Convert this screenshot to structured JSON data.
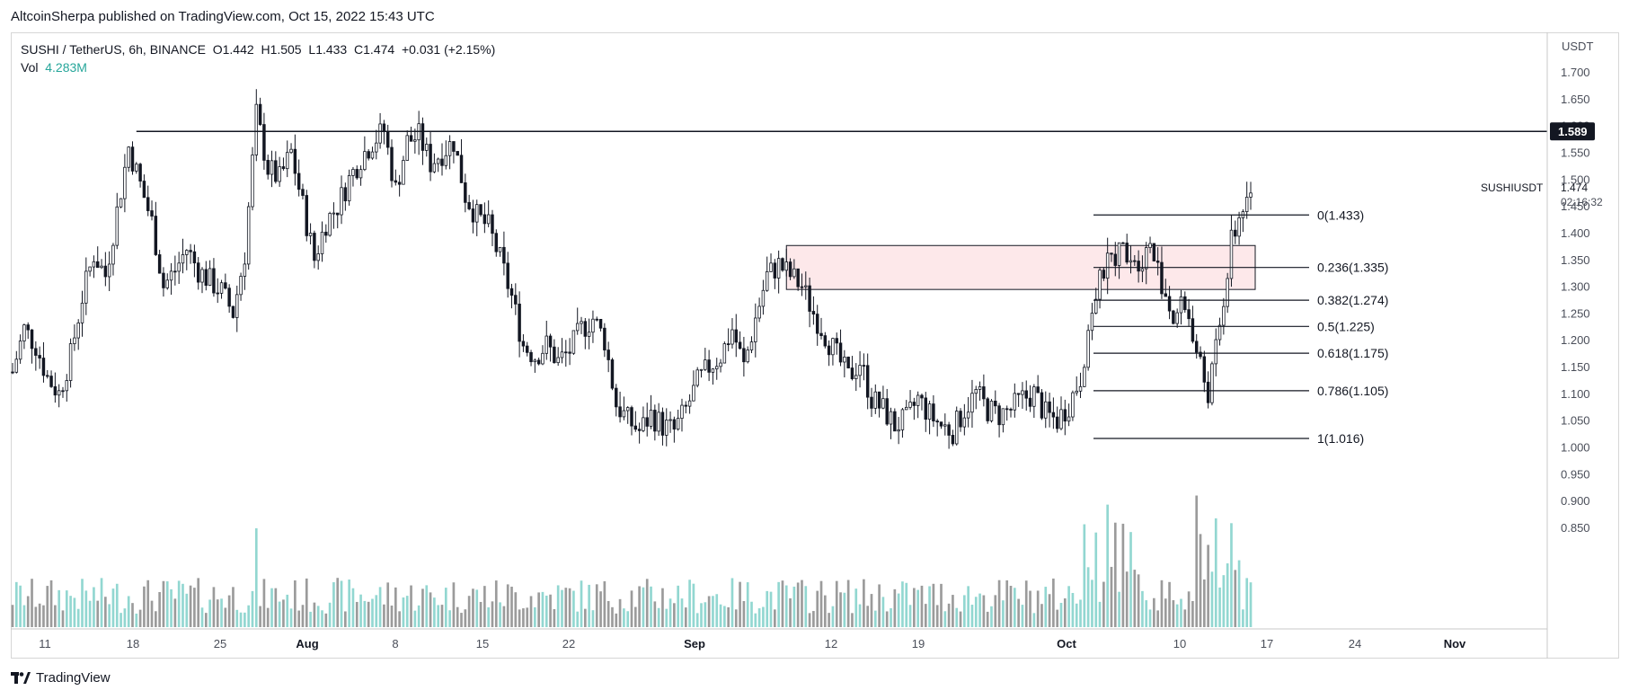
{
  "header": {
    "published": "AltcoinSherpa published on TradingView.com, Oct 15, 2022 15:43 UTC"
  },
  "legend": {
    "symbol": "SUSHI / TetherUS, 6h, BINANCE",
    "open_label": "O",
    "open": "1.442",
    "high_label": "H",
    "high": "1.505",
    "low_label": "L",
    "low": "1.433",
    "close_label": "C",
    "close": "1.474",
    "change": "+0.031 (+2.15%)",
    "vol_label": "Vol",
    "vol_value": "4.283M"
  },
  "footer": {
    "brand": "TradingView"
  },
  "colors": {
    "candle": "#131722",
    "volume_up": "#7fd0c9",
    "volume_down": "#8a8a8a",
    "zone_fill": "#fde8ea",
    "zone_stroke": "#131722",
    "vol_text": "#26a69a",
    "line": "#131722"
  },
  "chart_data": {
    "type": "candlestick",
    "symbol": "SUSHIUSDT",
    "currency_label": "USDT",
    "y_ticks": [
      "1.700",
      "1.650",
      "1.600",
      "1.550",
      "1.500",
      "1.450",
      "1.400",
      "1.350",
      "1.300",
      "1.250",
      "1.200",
      "1.150",
      "1.100",
      "1.050",
      "1.000",
      "0.950",
      "0.900",
      "0.850"
    ],
    "ylim": [
      0.82,
      1.725
    ],
    "x_ticks": [
      "11",
      "18",
      "25",
      "Aug",
      "8",
      "15",
      "22",
      "Sep",
      "12",
      "19",
      "Oct",
      "10",
      "17",
      "24",
      "Nov"
    ],
    "x_tick_bold": [
      "Aug",
      "Sep",
      "Oct",
      "Nov"
    ],
    "horizontal_level": {
      "price": 1.589,
      "label": "1.589"
    },
    "price_label": {
      "name": "SUSHIUSDT",
      "price": "1.474",
      "countdown": "02:16:32"
    },
    "zone": {
      "top": 1.376,
      "bottom": 1.294
    },
    "fib_levels": [
      {
        "label": "0(1.433)",
        "price": 1.433
      },
      {
        "label": "0.236(1.335)",
        "price": 1.335
      },
      {
        "label": "0.382(1.274)",
        "price": 1.274
      },
      {
        "label": "0.5(1.225)",
        "price": 1.225
      },
      {
        "label": "0.618(1.175)",
        "price": 1.175
      },
      {
        "label": "0.786(1.105)",
        "price": 1.105
      },
      {
        "label": "1(1.016)",
        "price": 1.016
      }
    ],
    "price_path": [
      [
        0,
        1.14
      ],
      [
        3,
        1.22
      ],
      [
        6,
        1.19
      ],
      [
        9,
        1.13
      ],
      [
        12,
        1.1
      ],
      [
        15,
        1.17
      ],
      [
        18,
        1.28
      ],
      [
        21,
        1.36
      ],
      [
        24,
        1.32
      ],
      [
        27,
        1.44
      ],
      [
        30,
        1.56
      ],
      [
        33,
        1.49
      ],
      [
        36,
        1.42
      ],
      [
        39,
        1.3
      ],
      [
        42,
        1.33
      ],
      [
        45,
        1.37
      ],
      [
        48,
        1.33
      ],
      [
        51,
        1.31
      ],
      [
        54,
        1.29
      ],
      [
        57,
        1.25
      ],
      [
        60,
        1.36
      ],
      [
        63,
        1.62
      ],
      [
        66,
        1.52
      ],
      [
        69,
        1.5
      ],
      [
        72,
        1.55
      ],
      [
        75,
        1.45
      ],
      [
        78,
        1.35
      ],
      [
        81,
        1.42
      ],
      [
        84,
        1.45
      ],
      [
        87,
        1.5
      ],
      [
        90,
        1.54
      ],
      [
        93,
        1.57
      ],
      [
        96,
        1.59
      ],
      [
        99,
        1.48
      ],
      [
        102,
        1.57
      ],
      [
        105,
        1.58
      ],
      [
        108,
        1.53
      ],
      [
        111,
        1.55
      ],
      [
        114,
        1.57
      ],
      [
        117,
        1.47
      ],
      [
        120,
        1.43
      ],
      [
        123,
        1.41
      ],
      [
        126,
        1.35
      ],
      [
        129,
        1.28
      ],
      [
        132,
        1.19
      ],
      [
        135,
        1.17
      ],
      [
        138,
        1.19
      ],
      [
        141,
        1.16
      ],
      [
        144,
        1.18
      ],
      [
        147,
        1.22
      ],
      [
        150,
        1.24
      ],
      [
        153,
        1.2
      ],
      [
        156,
        1.08
      ],
      [
        159,
        1.05
      ],
      [
        162,
        1.03
      ],
      [
        165,
        1.06
      ],
      [
        168,
        1.04
      ],
      [
        171,
        1.03
      ],
      [
        174,
        1.07
      ],
      [
        177,
        1.12
      ],
      [
        180,
        1.15
      ],
      [
        183,
        1.17
      ],
      [
        186,
        1.22
      ],
      [
        189,
        1.15
      ],
      [
        192,
        1.24
      ],
      [
        195,
        1.32
      ],
      [
        198,
        1.34
      ],
      [
        201,
        1.32
      ],
      [
        204,
        1.3
      ],
      [
        207,
        1.25
      ],
      [
        210,
        1.21
      ],
      [
        213,
        1.17
      ],
      [
        216,
        1.13
      ],
      [
        219,
        1.16
      ],
      [
        222,
        1.09
      ],
      [
        225,
        1.07
      ],
      [
        228,
        1.04
      ],
      [
        231,
        1.05
      ],
      [
        234,
        1.09
      ],
      [
        237,
        1.06
      ],
      [
        240,
        1.04
      ],
      [
        243,
        1.03
      ],
      [
        246,
        1.07
      ],
      [
        249,
        1.1
      ],
      [
        252,
        1.07
      ],
      [
        255,
        1.06
      ],
      [
        258,
        1.07
      ],
      [
        261,
        1.09
      ],
      [
        264,
        1.1
      ],
      [
        267,
        1.06
      ],
      [
        270,
        1.05
      ],
      [
        273,
        1.08
      ],
      [
        276,
        1.13
      ],
      [
        279,
        1.26
      ],
      [
        282,
        1.33
      ],
      [
        285,
        1.36
      ],
      [
        288,
        1.37
      ],
      [
        291,
        1.35
      ],
      [
        294,
        1.37
      ],
      [
        297,
        1.31
      ],
      [
        300,
        1.24
      ],
      [
        303,
        1.27
      ],
      [
        306,
        1.18
      ],
      [
        309,
        1.1
      ],
      [
        312,
        1.22
      ],
      [
        315,
        1.38
      ],
      [
        318,
        1.45
      ],
      [
        320,
        1.474
      ]
    ]
  }
}
